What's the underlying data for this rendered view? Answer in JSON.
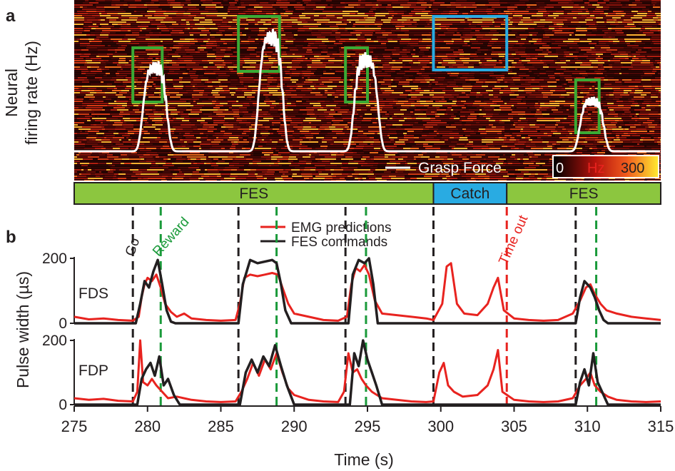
{
  "panel_a": {
    "label": "a",
    "ylabel_line1": "Neural",
    "ylabel_line2": "firing rate (Hz)",
    "legend_grasp": "Grasp Force",
    "colorbar": {
      "min": "0",
      "unit": "Hz",
      "max": "300"
    },
    "phases": [
      {
        "label": "FES",
        "start": 275,
        "end": 299.5,
        "color": "#8cc63f"
      },
      {
        "label": "Catch",
        "start": 299.5,
        "end": 304.5,
        "color": "#29abe2"
      },
      {
        "label": "FES",
        "start": 304.5,
        "end": 315,
        "color": "#8cc63f"
      }
    ]
  },
  "panel_b": {
    "label": "b",
    "ylabel": "Pulse width (µs)",
    "xlabel": "Time (s)",
    "legend": [
      {
        "name": "EMG predictions",
        "color": "#e8231f"
      },
      {
        "name": "FES commands",
        "color": "#231f20"
      }
    ],
    "annotations": {
      "go": "Go",
      "reward": "Reward",
      "timeout": "Time out"
    },
    "go_color": "#231f20",
    "reward_color": "#1a9a3a",
    "timeout_color": "#e8231f"
  },
  "chart_data": [
    {
      "type": "heatmap",
      "panel": "a",
      "ylabel": "Neural firing rate (Hz)",
      "colorscale": "black-red-yellow",
      "zlim": [
        0,
        300
      ],
      "grasp_force_series": "Grasp Force",
      "selection_boxes": [
        {
          "kind": "decoder",
          "color": "#3aaa35",
          "x": [
            279.0,
            281.0
          ]
        },
        {
          "kind": "decoder",
          "color": "#3aaa35",
          "x": [
            286.2,
            289.0
          ]
        },
        {
          "kind": "decoder",
          "color": "#3aaa35",
          "x": [
            293.5,
            295.0
          ]
        },
        {
          "kind": "catch",
          "color": "#29abe2",
          "x": [
            299.5,
            304.5
          ]
        },
        {
          "kind": "decoder",
          "color": "#3aaa35",
          "x": [
            309.2,
            310.8
          ]
        }
      ],
      "grasp_force_peaks": [
        {
          "x": 280.5,
          "height": 0.55
        },
        {
          "x": 288.4,
          "height": 0.75
        },
        {
          "x": 294.9,
          "height": 0.6
        },
        {
          "x": 310.3,
          "height": 0.33
        }
      ]
    },
    {
      "type": "line",
      "panel": "b",
      "xlabel": "Time (s)",
      "ylabel": "Pulse width (µs)",
      "xlim": [
        275,
        315
      ],
      "xticks": [
        275,
        280,
        285,
        290,
        295,
        300,
        305,
        310,
        315
      ],
      "ylim": [
        0,
        200
      ],
      "yticks": [
        0,
        200
      ],
      "events": {
        "go": [
          279.0,
          286.2,
          293.5,
          299.5,
          309.2
        ],
        "reward": [
          280.9,
          288.8,
          294.9,
          310.6
        ],
        "timeout": [
          304.5
        ]
      },
      "subplots": [
        {
          "name": "FDS",
          "series": [
            {
              "name": "EMG predictions",
              "color": "#e8231f",
              "x": [
                275,
                276,
                277,
                278,
                279,
                279.4,
                279.6,
                279.8,
                280,
                280.3,
                280.6,
                280.9,
                281.2,
                281.6,
                282,
                282.5,
                283,
                284,
                285,
                286,
                286.3,
                286.6,
                287,
                287.5,
                288,
                288.5,
                288.9,
                289.2,
                289.6,
                290,
                291,
                292,
                293,
                293.6,
                293.9,
                294.2,
                294.5,
                294.8,
                295.1,
                295.5,
                296,
                297,
                298,
                299,
                299.5,
                300.1,
                300.4,
                300.7,
                301.1,
                301.6,
                302.5,
                303.2,
                303.6,
                303.9,
                304.3,
                305,
                306,
                307,
                308,
                309,
                309.5,
                309.9,
                310.2,
                310.5,
                310.9,
                311.3,
                312,
                313,
                314,
                315
              ],
              "y": [
                20,
                12,
                15,
                10,
                8,
                20,
                80,
                120,
                140,
                130,
                150,
                110,
                60,
                35,
                20,
                30,
                15,
                10,
                8,
                10,
                60,
                140,
                150,
                145,
                150,
                155,
                150,
                110,
                60,
                30,
                20,
                10,
                8,
                20,
                120,
                170,
                160,
                180,
                150,
                70,
                30,
                25,
                20,
                15,
                10,
                60,
                175,
                185,
                60,
                30,
                25,
                60,
                110,
                140,
                40,
                15,
                10,
                8,
                10,
                30,
                70,
                110,
                120,
                90,
                60,
                40,
                30,
                20,
                15,
                10
              ]
            },
            {
              "name": "FES commands",
              "color": "#231f20",
              "x": [
                275,
                279.2,
                279.5,
                279.8,
                280.1,
                280.4,
                280.7,
                281,
                281.3,
                281.6,
                281.9,
                286.2,
                286.5,
                287,
                287.5,
                288,
                288.5,
                288.8,
                289.1,
                289.4,
                289.8,
                293.7,
                294,
                294.4,
                294.8,
                295.1,
                295.4,
                295.7,
                309.2,
                309.5,
                309.8,
                310.2,
                310.5,
                310.8,
                311.1,
                311.4,
                315
              ],
              "y": [
                0,
                0,
                60,
                130,
                110,
                160,
                195,
                120,
                40,
                5,
                0,
                0,
                120,
                195,
                185,
                190,
                195,
                185,
                120,
                40,
                0,
                0,
                150,
                195,
                185,
                200,
                120,
                0,
                0,
                80,
                130,
                110,
                80,
                40,
                10,
                0,
                0
              ]
            }
          ]
        },
        {
          "name": "FDP",
          "series": [
            {
              "name": "EMG predictions",
              "color": "#e8231f",
              "x": [
                275,
                276,
                277,
                278,
                279,
                279.3,
                279.5,
                279.7,
                280,
                280.3,
                280.6,
                281,
                281.4,
                282,
                283,
                284,
                285,
                286,
                286.4,
                286.8,
                287.2,
                287.6,
                288,
                288.4,
                288.8,
                289.2,
                289.6,
                290,
                291,
                292,
                293,
                293.4,
                293.7,
                294,
                294.3,
                294.6,
                294.9,
                295.3,
                296,
                297,
                298,
                299,
                299.5,
                299.9,
                300.2,
                300.5,
                300.9,
                301.5,
                302.5,
                303.2,
                303.6,
                303.9,
                304.2,
                305,
                306,
                307,
                308,
                309,
                309.5,
                309.9,
                310.2,
                310.5,
                310.9,
                311.4,
                312,
                313,
                314,
                315
              ],
              "y": [
                20,
                15,
                18,
                12,
                10,
                40,
                200,
                70,
                60,
                80,
                60,
                40,
                20,
                25,
                15,
                10,
                8,
                10,
                40,
                80,
                130,
                90,
                140,
                110,
                160,
                100,
                50,
                30,
                15,
                10,
                8,
                40,
                160,
                100,
                110,
                80,
                60,
                40,
                20,
                15,
                10,
                8,
                10,
                100,
                130,
                60,
                40,
                25,
                30,
                60,
                110,
                170,
                40,
                15,
                10,
                8,
                10,
                20,
                60,
                80,
                100,
                60,
                40,
                25,
                15,
                10,
                8,
                10
              ]
            },
            {
              "name": "FES commands",
              "color": "#231f20",
              "x": [
                275,
                279.3,
                279.6,
                279.9,
                280.2,
                280.5,
                280.8,
                281.1,
                281.4,
                281.8,
                282.2,
                286.3,
                286.7,
                287.1,
                287.5,
                287.9,
                288.3,
                288.7,
                289.1,
                289.5,
                290,
                293.8,
                294.1,
                294.4,
                294.7,
                295,
                295.3,
                295.6,
                296,
                309.2,
                309.5,
                309.8,
                310.1,
                310.4,
                310.7,
                311,
                311.4,
                315
              ],
              "y": [
                0,
                0,
                80,
                110,
                130,
                90,
                150,
                60,
                80,
                30,
                0,
                0,
                100,
                140,
                100,
                150,
                120,
                185,
                120,
                60,
                0,
                0,
                160,
                120,
                200,
                140,
                100,
                60,
                0,
                0,
                70,
                110,
                60,
                160,
                70,
                40,
                0,
                0
              ]
            }
          ]
        }
      ]
    }
  ]
}
